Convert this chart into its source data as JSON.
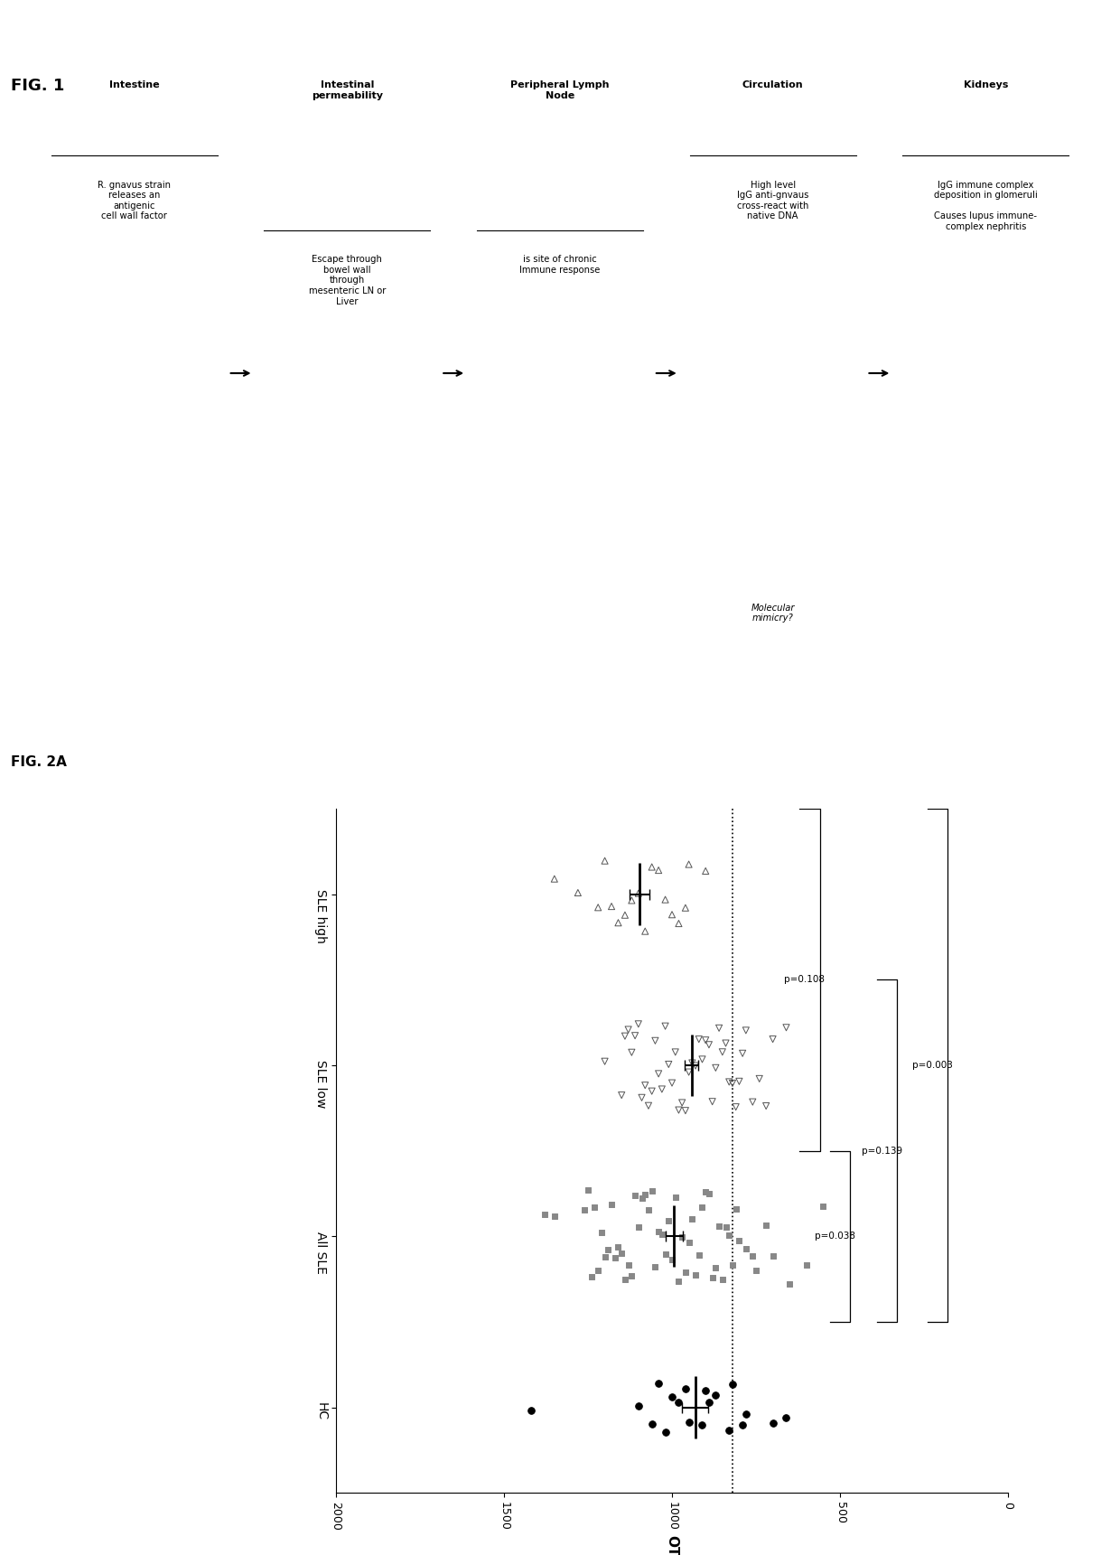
{
  "fig1_label": "FIG. 1",
  "fig2a_label": "FIG. 2A",
  "fig1_boxes": [
    {
      "title": "Intestine",
      "body_normal": "R. gnavus strain\nreleases an\nantigenic\ncell wall factor",
      "body_italic": "",
      "bg": "#c0c0c0"
    },
    {
      "title": "Intestinal\npermeability",
      "body_normal": "Escape through\nbowel wall\nthrough\nmesenteric LN or\nLiver",
      "body_italic": "",
      "bg": "#dcdcdc"
    },
    {
      "title": "Peripheral Lymph\nNode",
      "body_normal": "is site of chronic\nImmune response",
      "body_italic": "",
      "bg": "#dcdcdc"
    },
    {
      "title": "Circulation",
      "body_normal": "High level\nIgG anti-gnvaus\ncross-react with\nnative DNA",
      "body_italic": "Molecular\nmimicry?",
      "bg": "#dcdcdc"
    },
    {
      "title": "Kidneys",
      "body_normal": "IgG immune complex\ndeposition in glomeruli\n\nCauses lupus immune-\ncomplex nephritis",
      "body_italic": "",
      "bg": "#dcdcdc"
    }
  ],
  "hc_vals": [
    780,
    820,
    870,
    890,
    910,
    790,
    830,
    960,
    980,
    1000,
    1020,
    1040,
    900,
    950,
    1060,
    700,
    660,
    1100,
    1420
  ],
  "sle_all_vals": [
    700,
    720,
    750,
    760,
    780,
    800,
    810,
    820,
    830,
    840,
    850,
    860,
    870,
    880,
    890,
    900,
    910,
    920,
    930,
    940,
    950,
    960,
    970,
    980,
    990,
    1000,
    1010,
    1020,
    1030,
    1040,
    1050,
    1060,
    1070,
    1080,
    1090,
    1100,
    1110,
    1120,
    1130,
    1140,
    1150,
    1160,
    1170,
    1180,
    1190,
    1200,
    1210,
    1220,
    1230,
    1240,
    1250,
    1260,
    600,
    650,
    550,
    1350,
    1380
  ],
  "sle_low_vals": [
    700,
    720,
    740,
    760,
    780,
    790,
    800,
    810,
    820,
    830,
    840,
    850,
    860,
    870,
    880,
    890,
    900,
    910,
    920,
    930,
    940,
    950,
    960,
    970,
    980,
    990,
    1000,
    1010,
    1020,
    1030,
    1040,
    1050,
    1060,
    1070,
    1080,
    1090,
    1100,
    1110,
    1120,
    1130,
    1140,
    1150,
    660,
    1200
  ],
  "sle_high_vals": [
    900,
    950,
    960,
    980,
    1000,
    1020,
    1040,
    1060,
    1080,
    1100,
    1120,
    1140,
    1160,
    1180,
    1200,
    1220,
    1280,
    1350
  ],
  "dotted_line_otu": 820,
  "ylabel": "OTU",
  "otu_ticks": [
    0,
    500,
    1000,
    1500,
    2000
  ],
  "group_labels": [
    "HC",
    "All SLE",
    "SLE low",
    "SLE high"
  ],
  "p_values": [
    {
      "text": "p=0.038",
      "g1": 0,
      "g2": 1
    },
    {
      "text": "p=0.139",
      "g1": 0,
      "g2": 2
    },
    {
      "text": "p=0.003",
      "g1": 0,
      "g2": 3
    },
    {
      "text": "p=0.108",
      "g1": 1,
      "g2": 3
    }
  ]
}
